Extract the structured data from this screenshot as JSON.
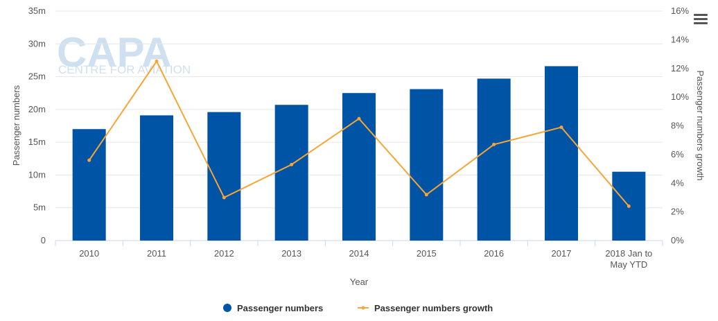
{
  "watermark": {
    "brand": "CAPA",
    "tagline": "CENTRE FOR AVIATION"
  },
  "chart_data": {
    "type": "bar",
    "x_title": "Year",
    "categories": [
      "2010",
      "2011",
      "2012",
      "2013",
      "2014",
      "2015",
      "2016",
      "2017",
      [
        "2018 Jan to",
        "May YTD"
      ]
    ],
    "y_left": {
      "title": "Passenger numbers",
      "range": [
        0,
        35
      ],
      "ticks": [
        0,
        5,
        10,
        15,
        20,
        25,
        30,
        35
      ],
      "tick_labels": [
        "0",
        "5m",
        "10m",
        "15m",
        "20m",
        "25m",
        "30m",
        "35m"
      ]
    },
    "y_right": {
      "title": "Passenger numbers growth",
      "range": [
        0,
        16
      ],
      "ticks": [
        0,
        2,
        4,
        6,
        8,
        10,
        12,
        14,
        16
      ],
      "tick_labels": [
        "0%",
        "2%",
        "4%",
        "6%",
        "8%",
        "10%",
        "12%",
        "14%",
        "16%"
      ]
    },
    "grid": true,
    "legend_position": "bottom-center",
    "series": [
      {
        "name": "Passenger numbers",
        "type": "bar",
        "axis": "left",
        "color": "#0054a6",
        "values": [
          17.0,
          19.1,
          19.6,
          20.7,
          22.5,
          23.1,
          24.7,
          26.6,
          10.5
        ]
      },
      {
        "name": "Passenger numbers growth",
        "type": "line",
        "axis": "right",
        "color": "#f7a535",
        "values": [
          5.6,
          12.5,
          3.0,
          5.3,
          8.5,
          3.2,
          6.7,
          7.9,
          2.4
        ]
      }
    ]
  }
}
